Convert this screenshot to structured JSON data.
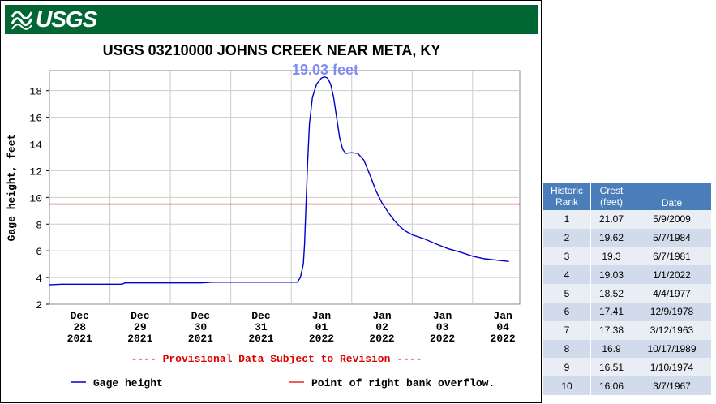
{
  "banner": {
    "logo_text": "USGS"
  },
  "chart_data": {
    "type": "line",
    "title": "USGS 03210000 JOHNS CREEK NEAR META, KY",
    "peak_annotation": "19.03 feet",
    "ylabel": "Gage height, feet",
    "ylim": [
      2,
      19.5
    ],
    "yticks": [
      2,
      4,
      6,
      8,
      10,
      12,
      14,
      16,
      18
    ],
    "xlim": [
      0,
      7.2
    ],
    "xticks": [
      {
        "x": 0.5,
        "label": [
          "Dec",
          "28",
          "2021"
        ]
      },
      {
        "x": 1.5,
        "label": [
          "Dec",
          "29",
          "2021"
        ]
      },
      {
        "x": 2.5,
        "label": [
          "Dec",
          "30",
          "2021"
        ]
      },
      {
        "x": 3.5,
        "label": [
          "Dec",
          "31",
          "2021"
        ]
      },
      {
        "x": 4.5,
        "label": [
          "Jan",
          "01",
          "2022"
        ]
      },
      {
        "x": 5.5,
        "label": [
          "Jan",
          "02",
          "2022"
        ]
      },
      {
        "x": 6.5,
        "label": [
          "Jan",
          "03",
          "2022"
        ]
      },
      {
        "x": 7.5,
        "label": [
          "Jan",
          "04",
          "2022"
        ]
      }
    ],
    "grid": true,
    "provisional_note": "---- Provisional Data Subject to Revision ----",
    "series": [
      {
        "name": "Gage height",
        "color": "#0000cc",
        "points": [
          [
            0.0,
            3.45
          ],
          [
            0.2,
            3.5
          ],
          [
            0.5,
            3.5
          ],
          [
            1.0,
            3.5
          ],
          [
            1.2,
            3.5
          ],
          [
            1.25,
            3.6
          ],
          [
            1.5,
            3.6
          ],
          [
            2.0,
            3.6
          ],
          [
            2.5,
            3.6
          ],
          [
            2.7,
            3.65
          ],
          [
            3.0,
            3.65
          ],
          [
            3.5,
            3.65
          ],
          [
            3.8,
            3.65
          ],
          [
            4.1,
            3.65
          ],
          [
            4.15,
            4.0
          ],
          [
            4.2,
            5.0
          ],
          [
            4.22,
            6.5
          ],
          [
            4.24,
            9.0
          ],
          [
            4.27,
            12.5
          ],
          [
            4.3,
            15.5
          ],
          [
            4.35,
            17.5
          ],
          [
            4.42,
            18.5
          ],
          [
            4.5,
            18.95
          ],
          [
            4.55,
            19.03
          ],
          [
            4.6,
            18.95
          ],
          [
            4.65,
            18.5
          ],
          [
            4.7,
            17.5
          ],
          [
            4.75,
            16.0
          ],
          [
            4.8,
            14.5
          ],
          [
            4.85,
            13.6
          ],
          [
            4.9,
            13.3
          ],
          [
            5.0,
            13.35
          ],
          [
            5.1,
            13.3
          ],
          [
            5.2,
            12.8
          ],
          [
            5.3,
            11.7
          ],
          [
            5.4,
            10.5
          ],
          [
            5.5,
            9.6
          ],
          [
            5.6,
            8.9
          ],
          [
            5.7,
            8.3
          ],
          [
            5.8,
            7.8
          ],
          [
            5.9,
            7.45
          ],
          [
            6.0,
            7.2
          ],
          [
            6.2,
            6.9
          ],
          [
            6.4,
            6.5
          ],
          [
            6.6,
            6.15
          ],
          [
            6.8,
            5.9
          ],
          [
            7.0,
            5.6
          ],
          [
            7.2,
            5.4
          ],
          [
            7.4,
            5.3
          ],
          [
            7.6,
            5.2
          ]
        ]
      },
      {
        "name": "Point of right bank overflow.",
        "color": "#dd0000",
        "constant": 9.5
      }
    ]
  },
  "crest_table": {
    "headers": [
      "Historic Rank",
      "Crest (feet)",
      "Date"
    ],
    "rows": [
      [
        "1",
        "21.07",
        "5/9/2009"
      ],
      [
        "2",
        "19.62",
        "5/7/1984"
      ],
      [
        "3",
        "19.3",
        "6/7/1981"
      ],
      [
        "4",
        "19.03",
        "1/1/2022"
      ],
      [
        "5",
        "18.52",
        "4/4/1977"
      ],
      [
        "6",
        "17.41",
        "12/9/1978"
      ],
      [
        "7",
        "17.38",
        "3/12/1963"
      ],
      [
        "8",
        "16.9",
        "10/17/1989"
      ],
      [
        "9",
        "16.51",
        "1/10/1974"
      ],
      [
        "10",
        "16.06",
        "3/7/1967"
      ]
    ]
  }
}
